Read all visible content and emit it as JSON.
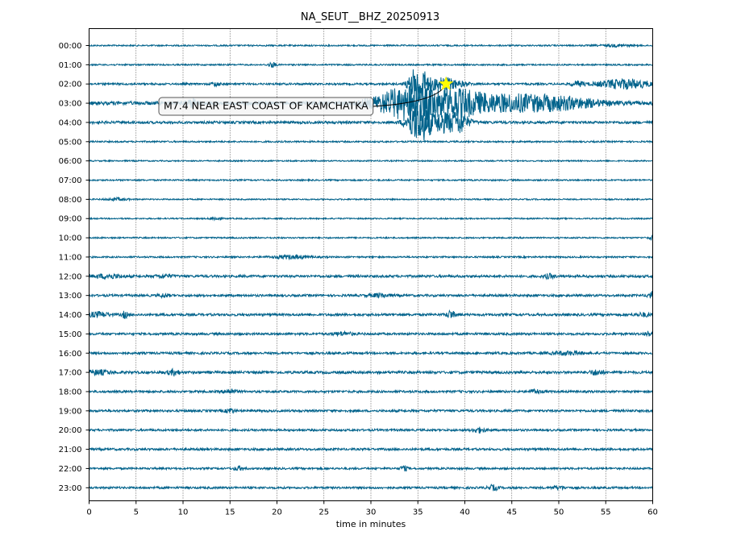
{
  "chart_data": {
    "type": "line",
    "title": "NA_SEUT__BHZ_20250913",
    "xlabel": "time in minutes",
    "ylabel": "",
    "xlim": [
      0,
      60
    ],
    "x_ticks": [
      0,
      5,
      10,
      15,
      20,
      25,
      30,
      35,
      40,
      45,
      50,
      55,
      60
    ],
    "y_tick_labels": [
      "00:00",
      "01:00",
      "02:00",
      "03:00",
      "04:00",
      "05:00",
      "06:00",
      "07:00",
      "08:00",
      "09:00",
      "10:00",
      "11:00",
      "12:00",
      "13:00",
      "14:00",
      "15:00",
      "16:00",
      "17:00",
      "18:00",
      "19:00",
      "20:00",
      "21:00",
      "22:00",
      "23:00"
    ],
    "grid": "vertical dotted lines at x ticks",
    "trace_color": "#00628b",
    "traces": [
      {
        "hour": "00:00",
        "noise": 0.9,
        "bursts": [
          {
            "t": 56,
            "a": 1.2,
            "w": 1.2
          }
        ]
      },
      {
        "hour": "01:00",
        "noise": 0.9,
        "bursts": [
          {
            "t": 19.5,
            "a": 3,
            "w": 0.3
          }
        ]
      },
      {
        "hour": "02:00",
        "noise": 1.2,
        "bursts": [
          {
            "t": 13.5,
            "a": 2.5,
            "w": 0.3
          },
          {
            "t": 35,
            "a": 24,
            "w": 0.6
          },
          {
            "t": 37.5,
            "a": 8,
            "w": 1.5
          },
          {
            "t": 52,
            "a": 3,
            "w": 0.5
          },
          {
            "t": 57,
            "a": 6,
            "w": 2
          }
        ]
      },
      {
        "hour": "03:00",
        "noise": 2.2,
        "bursts": [
          {
            "t": 11,
            "a": 5,
            "w": 0.4
          },
          {
            "t": 34,
            "a": 20,
            "w": 2.5
          },
          {
            "t": 39,
            "a": 13,
            "w": 2
          },
          {
            "t": 44,
            "a": 9,
            "w": 3
          },
          {
            "t": 50,
            "a": 7,
            "w": 3
          }
        ]
      },
      {
        "hour": "04:00",
        "noise": 1.6,
        "bursts": [
          {
            "t": 35,
            "a": 22,
            "w": 0.8
          },
          {
            "t": 37.5,
            "a": 12,
            "w": 1.5
          },
          {
            "t": 39.5,
            "a": 9,
            "w": 0.6
          }
        ]
      },
      {
        "hour": "05:00",
        "noise": 1.0,
        "bursts": []
      },
      {
        "hour": "06:00",
        "noise": 0.8,
        "bursts": []
      },
      {
        "hour": "07:00",
        "noise": 0.9,
        "bursts": []
      },
      {
        "hour": "08:00",
        "noise": 0.8,
        "bursts": [
          {
            "t": 3,
            "a": 1.5,
            "w": 0.8
          }
        ]
      },
      {
        "hour": "09:00",
        "noise": 0.8,
        "bursts": [
          {
            "t": 13.5,
            "a": 2,
            "w": 0.4
          }
        ]
      },
      {
        "hour": "10:00",
        "noise": 0.9,
        "bursts": [
          {
            "t": 60,
            "a": 3,
            "w": 0.3
          }
        ]
      },
      {
        "hour": "11:00",
        "noise": 1.0,
        "bursts": [
          {
            "t": 21.5,
            "a": 2,
            "w": 1.5
          }
        ]
      },
      {
        "hour": "12:00",
        "noise": 1.5,
        "bursts": [
          {
            "t": 2,
            "a": 2.5,
            "w": 1
          },
          {
            "t": 8,
            "a": 2,
            "w": 0.6
          },
          {
            "t": 49,
            "a": 2.5,
            "w": 0.4
          }
        ]
      },
      {
        "hour": "13:00",
        "noise": 1.4,
        "bursts": [
          {
            "t": 8,
            "a": 2,
            "w": 0.4
          },
          {
            "t": 31,
            "a": 2,
            "w": 0.8
          },
          {
            "t": 60,
            "a": 4,
            "w": 0.4
          }
        ]
      },
      {
        "hour": "14:00",
        "noise": 1.5,
        "bursts": [
          {
            "t": 1,
            "a": 3,
            "w": 0.8
          },
          {
            "t": 3.8,
            "a": 4,
            "w": 0.2
          },
          {
            "t": 38.5,
            "a": 5,
            "w": 0.3
          },
          {
            "t": 59,
            "a": 2,
            "w": 0.6
          }
        ]
      },
      {
        "hour": "15:00",
        "noise": 1.4,
        "bursts": [
          {
            "t": 27,
            "a": 2,
            "w": 0.8
          },
          {
            "t": 59.5,
            "a": 3,
            "w": 0.3
          }
        ]
      },
      {
        "hour": "16:00",
        "noise": 1.4,
        "bursts": [
          {
            "t": 51,
            "a": 2,
            "w": 1.2
          }
        ]
      },
      {
        "hour": "17:00",
        "noise": 1.6,
        "bursts": [
          {
            "t": 1,
            "a": 2.5,
            "w": 1
          },
          {
            "t": 9,
            "a": 3,
            "w": 0.5
          },
          {
            "t": 54,
            "a": 3,
            "w": 0.5
          }
        ]
      },
      {
        "hour": "18:00",
        "noise": 1.4,
        "bursts": [
          {
            "t": 15,
            "a": 3,
            "w": 0.5
          },
          {
            "t": 47.5,
            "a": 2.5,
            "w": 0.4
          }
        ]
      },
      {
        "hour": "19:00",
        "noise": 1.4,
        "bursts": [
          {
            "t": 15,
            "a": 3,
            "w": 0.3
          }
        ]
      },
      {
        "hour": "20:00",
        "noise": 1.3,
        "bursts": [
          {
            "t": 41.5,
            "a": 3,
            "w": 0.5
          }
        ]
      },
      {
        "hour": "21:00",
        "noise": 1.4,
        "bursts": []
      },
      {
        "hour": "22:00",
        "noise": 1.2,
        "bursts": [
          {
            "t": 16,
            "a": 2.5,
            "w": 0.4
          },
          {
            "t": 33.5,
            "a": 3,
            "w": 0.3
          }
        ]
      },
      {
        "hour": "23:00",
        "noise": 1.3,
        "bursts": [
          {
            "t": 43,
            "a": 3,
            "w": 0.4
          },
          {
            "t": 50,
            "a": 2,
            "w": 0.5
          }
        ]
      }
    ],
    "event": {
      "label": "M7.4 NEAR EAST COAST OF KAMCHATKA",
      "marker": "star",
      "marker_color": "#ffff00",
      "time_minutes": 38,
      "hour": "02:00"
    }
  }
}
